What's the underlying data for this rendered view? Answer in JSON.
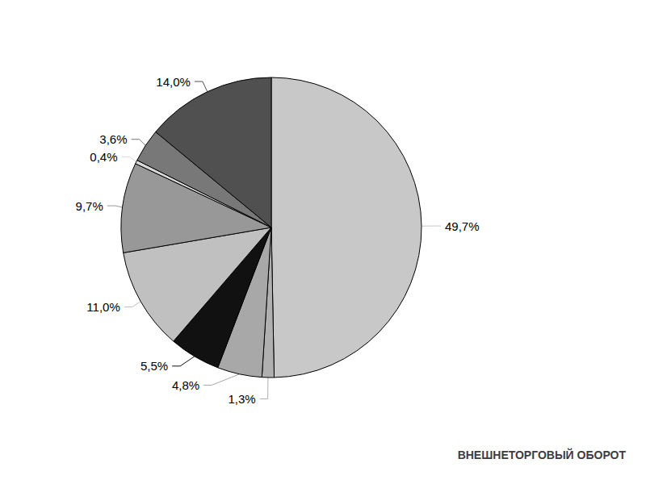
{
  "chart_data": {
    "type": "pie",
    "title": "ВНЕШНЕТОРГОВЫЙ ОБОРОТ",
    "values": [
      49.7,
      1.3,
      4.8,
      5.5,
      11.0,
      9.7,
      0.4,
      3.6,
      14.0
    ],
    "value_labels": [
      "49,7%",
      "1,3%",
      "4,8%",
      "5,5%",
      "11,0%",
      "9,7%",
      "0,4%",
      "3,6%",
      "14,0%"
    ],
    "colors": [
      "#c8c8c8",
      "#b0b0b0",
      "#a8a8a8",
      "#111111",
      "#c0c0c0",
      "#989898",
      "#d8d8d8",
      "#787878",
      "#505050"
    ],
    "data_labels": true
  }
}
